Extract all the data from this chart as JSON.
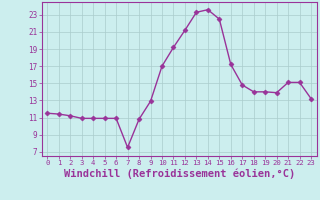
{
  "x": [
    0,
    1,
    2,
    3,
    4,
    5,
    6,
    7,
    8,
    9,
    10,
    11,
    12,
    13,
    14,
    15,
    16,
    17,
    18,
    19,
    20,
    21,
    22,
    23
  ],
  "y": [
    11.5,
    11.4,
    11.2,
    10.9,
    10.9,
    10.9,
    10.9,
    7.5,
    10.8,
    12.9,
    17.0,
    19.2,
    21.2,
    23.3,
    23.6,
    22.5,
    17.2,
    14.8,
    14.0,
    14.0,
    13.9,
    15.1,
    15.1,
    13.2
  ],
  "line_color": "#993399",
  "marker": "D",
  "markersize": 2.5,
  "linewidth": 1.0,
  "xlabel": "Windchill (Refroidissement éolien,°C)",
  "xlabel_fontsize": 7.5,
  "bg_color": "#cceeee",
  "grid_color": "#aacccc",
  "tick_color": "#993399",
  "label_color": "#993399",
  "ylim": [
    6.5,
    24.5
  ],
  "yticks": [
    7,
    9,
    11,
    13,
    15,
    17,
    19,
    21,
    23
  ],
  "xticks": [
    0,
    1,
    2,
    3,
    4,
    5,
    6,
    7,
    8,
    9,
    10,
    11,
    12,
    13,
    14,
    15,
    16,
    17,
    18,
    19,
    20,
    21,
    22,
    23
  ],
  "xlim": [
    -0.5,
    23.5
  ]
}
